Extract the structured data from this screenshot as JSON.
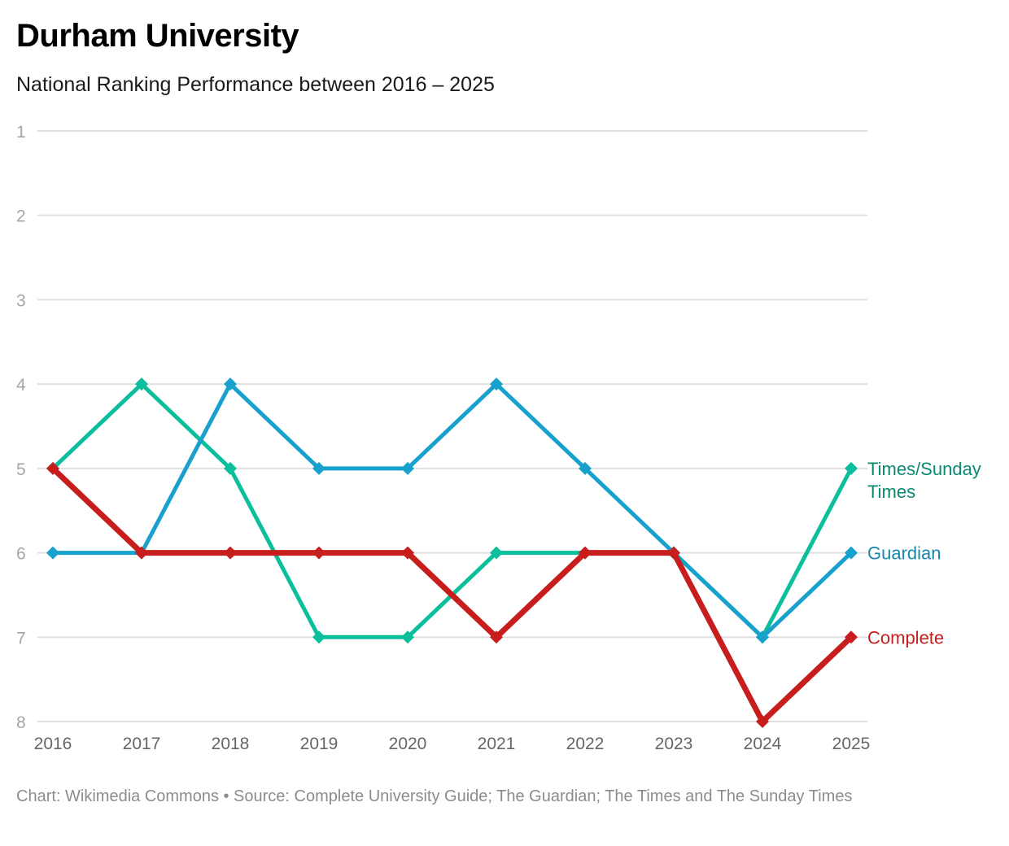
{
  "title": "Durham University",
  "subtitle": "National Ranking Performance between 2016 – 2025",
  "footer": "Chart: Wikimedia Commons • Source: Complete University Guide; The Guardian; The Times and The Sunday Times",
  "chart_data": {
    "type": "line",
    "title": "Durham University",
    "subtitle": "National Ranking Performance between 2016 – 2025",
    "xlabel": "",
    "ylabel": "",
    "x": [
      "2016",
      "2017",
      "2018",
      "2019",
      "2020",
      "2021",
      "2022",
      "2023",
      "2024",
      "2025"
    ],
    "y_ticks": [
      "1",
      "2",
      "3",
      "4",
      "5",
      "6",
      "7",
      "8"
    ],
    "ylim": [
      1,
      8
    ],
    "y_inverted": true,
    "grid": true,
    "legend": "inline-right",
    "series": [
      {
        "name": "Times/Sunday Times",
        "label_lines": [
          "Times/Sunday",
          "Times"
        ],
        "color": "#0bbf9c",
        "label_color": "#0a8a70",
        "width": 5,
        "values": [
          5,
          4,
          5,
          7,
          7,
          6,
          6,
          6,
          7,
          5
        ]
      },
      {
        "name": "Guardian",
        "label_lines": [
          "Guardian"
        ],
        "color": "#18a1cd",
        "label_color": "#1787b0",
        "width": 5,
        "values": [
          6,
          6,
          4,
          5,
          5,
          4,
          5,
          6,
          7,
          6
        ]
      },
      {
        "name": "Complete",
        "label_lines": [
          "Complete"
        ],
        "color": "#c71e1d",
        "label_color": "#c71e1d",
        "width": 7,
        "values": [
          5,
          6,
          6,
          6,
          6,
          7,
          6,
          6,
          8,
          7
        ]
      }
    ],
    "source": "Complete University Guide; The Guardian; The Times and The Sunday Times"
  }
}
